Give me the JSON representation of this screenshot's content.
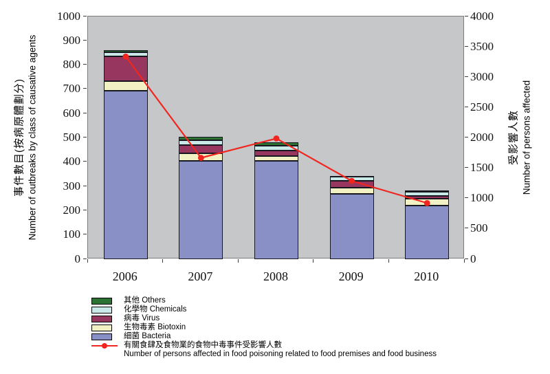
{
  "chart_data": {
    "type": "bar",
    "stacked": true,
    "categories": [
      "2006",
      "2007",
      "2008",
      "2009",
      "2010"
    ],
    "series": [
      {
        "key": "bacteria",
        "label_zh": "細菌",
        "label_en": "Bacteria",
        "color": "#8890c6",
        "values": [
          695,
          405,
          405,
          269,
          220
        ]
      },
      {
        "key": "biotoxin",
        "label_zh": "生物毒素",
        "label_en": "Biotoxin",
        "color": "#f1f1c3",
        "values": [
          40,
          30,
          20,
          25,
          28
        ]
      },
      {
        "key": "virus",
        "label_zh": "病毒",
        "label_en": "Virus",
        "color": "#97365f",
        "values": [
          100,
          36,
          22,
          28,
          12
        ]
      },
      {
        "key": "chemicals",
        "label_zh": "化學物",
        "label_en": "Chemicals",
        "color": "#c9e8e8",
        "values": [
          17,
          20,
          20,
          17,
          18
        ]
      },
      {
        "key": "others",
        "label_zh": "其他",
        "label_en": "Others",
        "color": "#2b7233",
        "values": [
          8,
          14,
          14,
          5,
          5
        ]
      }
    ],
    "line_series": {
      "key": "persons-affected",
      "label_zh": "有關食肆及食物業的食物中毒事件受影響人數",
      "label_en": "Number of persons affected in food poisoning related to food premises and food business",
      "color": "#f0261f",
      "values": [
        3340,
        1670,
        1990,
        1290,
        925
      ]
    },
    "left_axis": {
      "title_zh": "事件數目(按病原體劃分)",
      "title_en": "Number of outbreaks by class of causative agents",
      "min": 0,
      "max": 1000,
      "step": 100
    },
    "right_axis": {
      "title_zh": "受影響人數",
      "title_en": "Number of persons affected",
      "min": 0,
      "max": 4000,
      "step": 500
    },
    "legend_position": "bottom-left",
    "grid": false,
    "plot_background": "#c5c7c9"
  }
}
